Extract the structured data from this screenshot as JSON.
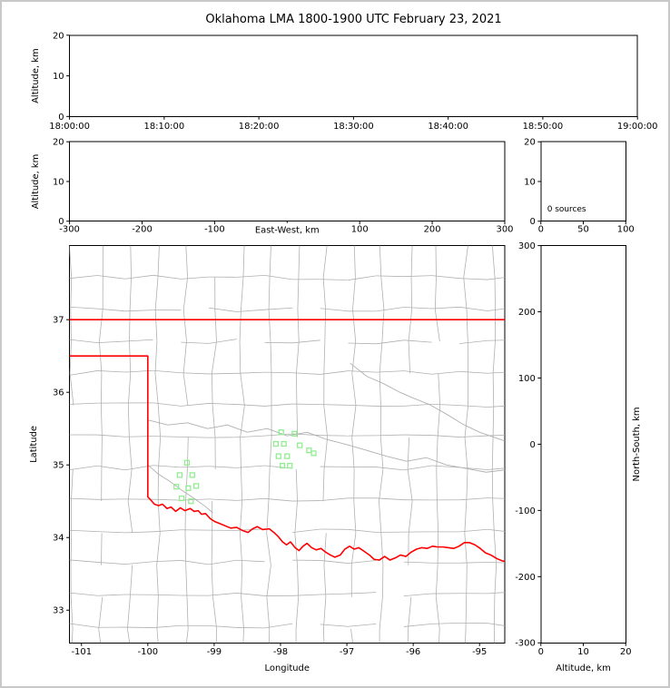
{
  "frame_color": "#c8c8c8",
  "chart_data": {
    "type": "scatter",
    "title": "Oklahoma LMA 1800-1900 UTC February 23, 2021",
    "description": "XLMA-style lightning mapping array display; no VHF sources plotted during the hour; green squares mark LMA station locations on the Oklahoma plan-view map",
    "colors": {
      "axis": "#000000",
      "county_lines": "#b0b0b0",
      "state_border": "#ff0000",
      "station_marker": "#90ee90",
      "background": "#ffffff"
    },
    "panels": {
      "time_height": {
        "ylabel": "Altitude, km",
        "xticks": [
          "18:00:00",
          "18:10:00",
          "18:20:00",
          "18:30:00",
          "18:40:00",
          "18:50:00",
          "19:00:00"
        ],
        "yticks": [
          "0",
          "10",
          "20"
        ],
        "ylim": [
          0,
          20
        ],
        "source_points": []
      },
      "ew_height": {
        "xlabel": "East-West, km",
        "ylabel": "Altitude, km",
        "xticks": [
          "-300",
          "-200",
          "-100",
          "0",
          "100",
          "200",
          "300"
        ],
        "yticks": [
          "0",
          "10",
          "20"
        ],
        "xlim": [
          -300,
          300
        ],
        "ylim": [
          0,
          20
        ],
        "source_points": []
      },
      "source_count": {
        "annotation": "0 sources",
        "xticks": [
          "0",
          "50",
          "100"
        ],
        "yticks": [
          "0",
          "10",
          "20"
        ],
        "xlim": [
          0,
          100
        ],
        "ylim": [
          0,
          20
        ],
        "source_points": []
      },
      "plan_view": {
        "xlabel": "Longitude",
        "ylabel": "Latitude",
        "xticks": [
          "-101",
          "-100",
          "-99",
          "-98",
          "-97",
          "-96",
          "-95"
        ],
        "yticks": [
          "33",
          "34",
          "35",
          "36",
          "37"
        ],
        "lon_range": [
          -101.18,
          -94.62
        ],
        "lat_range": [
          32.55,
          38.02
        ],
        "stations": [
          [
            -99.41,
            35.03
          ],
          [
            -99.52,
            34.86
          ],
          [
            -99.33,
            34.86
          ],
          [
            -99.57,
            34.7
          ],
          [
            -99.39,
            34.68
          ],
          [
            -99.27,
            34.71
          ],
          [
            -99.49,
            34.54
          ],
          [
            -99.35,
            34.5
          ],
          [
            -97.99,
            35.45
          ],
          [
            -97.79,
            35.43
          ],
          [
            -98.07,
            35.29
          ],
          [
            -97.95,
            35.29
          ],
          [
            -97.71,
            35.27
          ],
          [
            -97.57,
            35.2
          ],
          [
            -98.03,
            35.12
          ],
          [
            -97.9,
            35.12
          ],
          [
            -97.97,
            34.99
          ],
          [
            -97.86,
            34.99
          ],
          [
            -97.5,
            35.16
          ]
        ],
        "state_border": {
          "north": [
            [
              -101.18,
              37.0
            ],
            [
              -94.62,
              37.0
            ]
          ],
          "west_and_red_river": [
            [
              -101.18,
              36.5
            ],
            [
              -100.0,
              36.5
            ],
            [
              -100.0,
              34.56
            ],
            [
              -99.95,
              34.51
            ],
            [
              -99.9,
              34.46
            ],
            [
              -99.84,
              34.44
            ],
            [
              -99.78,
              34.46
            ],
            [
              -99.71,
              34.4
            ],
            [
              -99.65,
              34.42
            ],
            [
              -99.58,
              34.36
            ],
            [
              -99.51,
              34.41
            ],
            [
              -99.44,
              34.37
            ],
            [
              -99.36,
              34.4
            ],
            [
              -99.3,
              34.36
            ],
            [
              -99.24,
              34.37
            ],
            [
              -99.19,
              34.32
            ],
            [
              -99.13,
              34.33
            ],
            [
              -99.06,
              34.26
            ],
            [
              -98.99,
              34.22
            ],
            [
              -98.91,
              34.19
            ],
            [
              -98.83,
              34.16
            ],
            [
              -98.75,
              34.13
            ],
            [
              -98.66,
              34.14
            ],
            [
              -98.58,
              34.1
            ],
            [
              -98.49,
              34.07
            ],
            [
              -98.42,
              34.12
            ],
            [
              -98.35,
              34.15
            ],
            [
              -98.27,
              34.11
            ],
            [
              -98.17,
              34.12
            ],
            [
              -98.1,
              34.07
            ],
            [
              -98.03,
              34.01
            ],
            [
              -97.97,
              33.94
            ],
            [
              -97.91,
              33.9
            ],
            [
              -97.85,
              33.94
            ],
            [
              -97.78,
              33.86
            ],
            [
              -97.72,
              33.82
            ],
            [
              -97.66,
              33.88
            ],
            [
              -97.6,
              33.92
            ],
            [
              -97.53,
              33.86
            ],
            [
              -97.46,
              33.83
            ],
            [
              -97.39,
              33.85
            ],
            [
              -97.32,
              33.8
            ],
            [
              -97.25,
              33.76
            ],
            [
              -97.18,
              33.73
            ],
            [
              -97.1,
              33.76
            ],
            [
              -97.03,
              33.84
            ],
            [
              -96.96,
              33.88
            ],
            [
              -96.89,
              33.84
            ],
            [
              -96.82,
              33.86
            ],
            [
              -96.74,
              33.81
            ],
            [
              -96.66,
              33.76
            ],
            [
              -96.59,
              33.7
            ],
            [
              -96.51,
              33.69
            ],
            [
              -96.43,
              33.74
            ],
            [
              -96.35,
              33.69
            ],
            [
              -96.27,
              33.72
            ],
            [
              -96.19,
              33.76
            ],
            [
              -96.11,
              33.74
            ],
            [
              -96.03,
              33.8
            ],
            [
              -95.95,
              33.84
            ],
            [
              -95.87,
              33.86
            ],
            [
              -95.79,
              33.85
            ],
            [
              -95.71,
              33.88
            ],
            [
              -95.63,
              33.87
            ],
            [
              -95.55,
              33.87
            ],
            [
              -95.47,
              33.86
            ],
            [
              -95.39,
              33.85
            ],
            [
              -95.31,
              33.88
            ],
            [
              -95.23,
              33.93
            ],
            [
              -95.15,
              33.93
            ],
            [
              -95.07,
              33.9
            ],
            [
              -94.99,
              33.85
            ],
            [
              -94.91,
              33.79
            ],
            [
              -94.83,
              33.76
            ],
            [
              -94.74,
              33.71
            ],
            [
              -94.66,
              33.68
            ],
            [
              -94.62,
              33.67
            ]
          ]
        },
        "rivers": [
          [
            [
              -96.95,
              36.4
            ],
            [
              -96.7,
              36.22
            ],
            [
              -96.45,
              36.12
            ],
            [
              -96.2,
              36.0
            ],
            [
              -96.0,
              35.92
            ],
            [
              -95.75,
              35.83
            ],
            [
              -95.5,
              35.7
            ],
            [
              -95.25,
              35.56
            ],
            [
              -95.0,
              35.45
            ],
            [
              -94.78,
              35.38
            ],
            [
              -94.62,
              35.33
            ]
          ],
          [
            [
              -100.0,
              35.0
            ],
            [
              -99.85,
              34.88
            ],
            [
              -99.68,
              34.78
            ],
            [
              -99.5,
              34.66
            ],
            [
              -99.32,
              34.55
            ],
            [
              -99.15,
              34.44
            ],
            [
              -99.02,
              34.34
            ]
          ],
          [
            [
              -100.0,
              35.62
            ],
            [
              -99.7,
              35.55
            ],
            [
              -99.4,
              35.58
            ],
            [
              -99.1,
              35.5
            ],
            [
              -98.8,
              35.55
            ],
            [
              -98.5,
              35.45
            ],
            [
              -98.2,
              35.5
            ],
            [
              -97.9,
              35.4
            ],
            [
              -97.6,
              35.45
            ],
            [
              -97.3,
              35.35
            ],
            [
              -97.0,
              35.28
            ],
            [
              -96.7,
              35.2
            ],
            [
              -96.4,
              35.12
            ],
            [
              -96.1,
              35.05
            ],
            [
              -95.8,
              35.1
            ],
            [
              -95.5,
              35.0
            ],
            [
              -95.2,
              34.95
            ],
            [
              -94.9,
              34.9
            ],
            [
              -94.62,
              34.93
            ]
          ]
        ],
        "county_grid": {
          "lons": [
            -101.15,
            -100.7,
            -100.27,
            -99.85,
            -99.43,
            -99.0,
            -98.58,
            -98.17,
            -97.75,
            -97.32,
            -96.9,
            -96.48,
            -96.05,
            -95.63,
            -95.2,
            -94.78
          ],
          "lats": [
            37.58,
            37.14,
            36.7,
            36.27,
            35.83,
            35.4,
            34.96,
            34.53,
            34.09,
            33.66,
            33.22,
            32.79
          ]
        }
      },
      "ns_height": {
        "xlabel": "Altitude, km",
        "right_ylabel": "North-South, km",
        "xticks": [
          "0",
          "10",
          "20"
        ],
        "yticks": [
          "300",
          "200",
          "100",
          "0",
          "-100",
          "-200",
          "-300"
        ],
        "xlim": [
          0,
          20
        ],
        "ylim": [
          -300,
          300
        ],
        "source_points": []
      }
    }
  }
}
